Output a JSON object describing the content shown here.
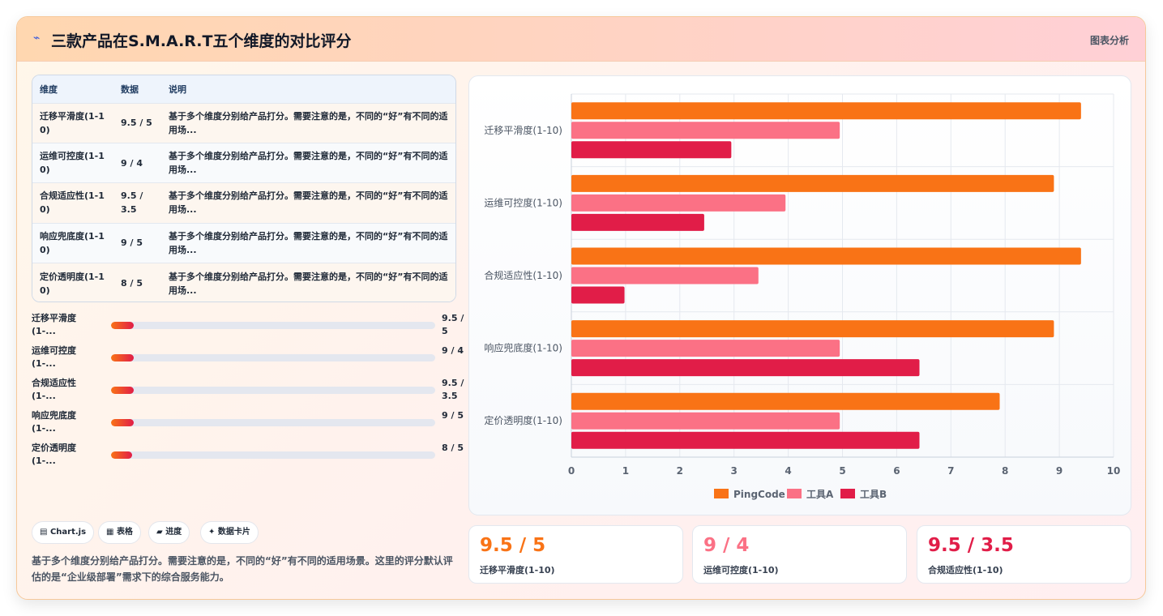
{
  "header": {
    "icon": "pulse-icon",
    "title": "三款产品在S.M.A.R.T五个维度的对比评分",
    "tag": "图表分析"
  },
  "table": {
    "columns": [
      "维度",
      "数据",
      "说明"
    ],
    "rows": [
      {
        "dim": "迁移平滑度(1-10)",
        "data": "9.5 / 5",
        "desc": "基于多个维度分别给产品打分。需要注意的是，不同的“好”有不同的适用场..."
      },
      {
        "dim": "运维可控度(1-10)",
        "data": "9 / 4",
        "desc": "基于多个维度分别给产品打分。需要注意的是，不同的“好”有不同的适用场..."
      },
      {
        "dim": "合规适应性(1-10)",
        "data": "9.5 / 3.5",
        "desc": "基于多个维度分别给产品打分。需要注意的是，不同的“好”有不同的适用场..."
      },
      {
        "dim": "响应兜底度(1-10)",
        "data": "9 / 5",
        "desc": "基于多个维度分别给产品打分。需要注意的是，不同的“好”有不同的适用场..."
      },
      {
        "dim": "定价透明度(1-10)",
        "data": "8 / 5",
        "desc": "基于多个维度分别给产品打分。需要注意的是，不同的“好”有不同的适用场..."
      }
    ]
  },
  "progress": [
    {
      "label": "迁移平滑度(1-...",
      "value": "9.5 / 5",
      "fill": 0.07
    },
    {
      "label": "运维可控度(1-...",
      "value": "9 / 4",
      "fill": 0.07
    },
    {
      "label": "合规适应性(1-...",
      "value": "9.5 / 3.5",
      "fill": 0.07
    },
    {
      "label": "响应兜底度(1-...",
      "value": "9 / 5",
      "fill": 0.07
    },
    {
      "label": "定价透明度(1-...",
      "value": "8 / 5",
      "fill": 0.065
    }
  ],
  "chips": [
    {
      "icon": "chart-icon",
      "glyph": "▤",
      "label": "Chart.js"
    },
    {
      "icon": "table-icon",
      "glyph": "▦",
      "label": "表格"
    },
    {
      "icon": "progress-icon",
      "glyph": "▰",
      "label": "进度"
    },
    {
      "icon": "sparkle-icon",
      "glyph": "✦",
      "label": "数据卡片"
    }
  ],
  "note": "基于多个维度分别给产品打分。需要注意的是，不同的“好”有不同的适用场景。这里的评分默认评估的是“企业级部署”需求下的综合服务能力。",
  "chart_data": {
    "type": "bar",
    "orientation": "horizontal",
    "categories": [
      "迁移平滑度(1-10)",
      "运维可控度(1-10)",
      "合规适应性(1-10)",
      "响应兜底度(1-10)",
      "定价透明度(1-10)"
    ],
    "series": [
      {
        "name": "PingCode",
        "color": "#f97316",
        "values": [
          9.4,
          8.9,
          9.4,
          8.9,
          7.9
        ]
      },
      {
        "name": "工具A",
        "color": "#fb7185",
        "values": [
          4.95,
          3.95,
          3.45,
          4.95,
          4.95
        ]
      },
      {
        "name": "工具B",
        "color": "#e11d48",
        "values": [
          2.95,
          2.45,
          0.98,
          6.42,
          6.42
        ]
      }
    ],
    "xlim": [
      0,
      10
    ],
    "xticks": [
      "0",
      "1",
      "2",
      "3",
      "4",
      "5",
      "6",
      "7",
      "8",
      "9",
      "10"
    ],
    "grid": true,
    "legend": "bottom"
  },
  "stats": [
    {
      "value": "9.5 / 5",
      "label": "迁移平滑度(1-10)",
      "color": "#f97316"
    },
    {
      "value": "9 / 4",
      "label": "运维可控度(1-10)",
      "color": "#fb7185"
    },
    {
      "value": "9.5 / 3.5",
      "label": "合规适应性(1-10)",
      "color": "#e11d48"
    }
  ]
}
